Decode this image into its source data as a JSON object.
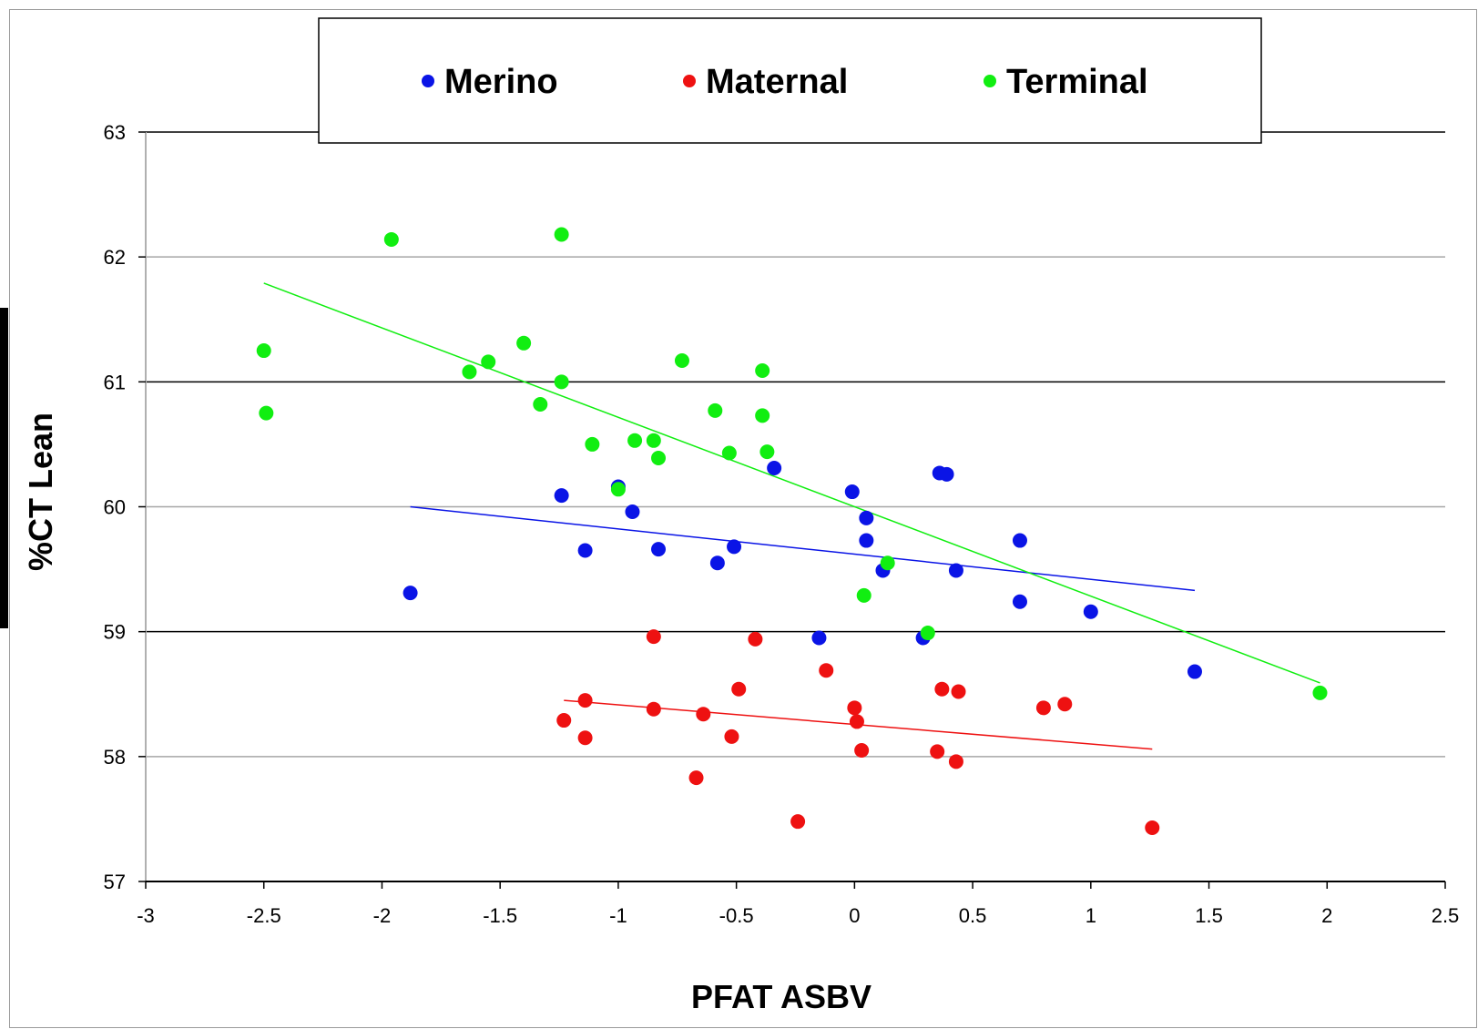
{
  "chart_data": {
    "type": "scatter",
    "title": "",
    "xlabel": "PFAT ASBV",
    "ylabel": "%CT Lean",
    "xlim": [
      -3,
      2.5
    ],
    "ylim": [
      57,
      63
    ],
    "x_ticks": [
      "-3",
      "-2.5",
      "-2",
      "-1.5",
      "-1",
      "-0.5",
      "0",
      "0.5",
      "1",
      "1.5",
      "2",
      "2.5"
    ],
    "y_ticks": [
      "57",
      "58",
      "59",
      "60",
      "61",
      "62",
      "63"
    ],
    "grid": "horizontal",
    "legend_position": "top",
    "series": [
      {
        "name": "Merino",
        "color": "#0a14e6",
        "trendline": [
          [
            -1.88,
            60.0
          ],
          [
            1.44,
            59.33
          ]
        ],
        "points": [
          [
            -1.88,
            59.31
          ],
          [
            -1.24,
            60.09
          ],
          [
            -1.14,
            59.65
          ],
          [
            -1.0,
            60.16
          ],
          [
            -0.94,
            59.96
          ],
          [
            -0.83,
            59.66
          ],
          [
            -0.58,
            59.55
          ],
          [
            -0.51,
            59.68
          ],
          [
            -0.34,
            60.31
          ],
          [
            -0.15,
            58.95
          ],
          [
            -0.01,
            60.12
          ],
          [
            0.05,
            59.91
          ],
          [
            0.05,
            59.73
          ],
          [
            0.12,
            59.49
          ],
          [
            0.29,
            58.95
          ],
          [
            0.36,
            60.27
          ],
          [
            0.39,
            60.26
          ],
          [
            0.43,
            59.49
          ],
          [
            0.7,
            59.73
          ],
          [
            0.7,
            59.24
          ],
          [
            1.0,
            59.16
          ],
          [
            1.44,
            58.68
          ]
        ]
      },
      {
        "name": "Maternal",
        "color": "#ee1111",
        "trendline": [
          [
            -1.23,
            58.45
          ],
          [
            1.26,
            58.06
          ]
        ],
        "points": [
          [
            -1.23,
            58.29
          ],
          [
            -1.14,
            58.45
          ],
          [
            -1.14,
            58.15
          ],
          [
            -0.85,
            58.96
          ],
          [
            -0.85,
            58.38
          ],
          [
            -0.67,
            57.83
          ],
          [
            -0.64,
            58.34
          ],
          [
            -0.52,
            58.16
          ],
          [
            -0.49,
            58.54
          ],
          [
            -0.42,
            58.94
          ],
          [
            -0.24,
            57.48
          ],
          [
            -0.12,
            58.69
          ],
          [
            0.0,
            58.39
          ],
          [
            0.01,
            58.28
          ],
          [
            0.03,
            58.05
          ],
          [
            0.35,
            58.04
          ],
          [
            0.37,
            58.54
          ],
          [
            0.43,
            57.96
          ],
          [
            0.44,
            58.52
          ],
          [
            0.8,
            58.39
          ],
          [
            0.89,
            58.42
          ],
          [
            1.26,
            57.43
          ]
        ]
      },
      {
        "name": "Terminal",
        "color": "#11ee11",
        "trendline": [
          [
            -2.5,
            61.79
          ],
          [
            1.97,
            58.59
          ]
        ],
        "points": [
          [
            -2.5,
            61.25
          ],
          [
            -2.49,
            60.75
          ],
          [
            -1.96,
            62.14
          ],
          [
            -1.63,
            61.08
          ],
          [
            -1.55,
            61.16
          ],
          [
            -1.4,
            61.31
          ],
          [
            -1.33,
            60.82
          ],
          [
            -1.24,
            62.18
          ],
          [
            -1.24,
            61.0
          ],
          [
            -1.11,
            60.5
          ],
          [
            -1.0,
            60.14
          ],
          [
            -0.93,
            60.53
          ],
          [
            -0.85,
            60.53
          ],
          [
            -0.83,
            60.39
          ],
          [
            -0.73,
            61.17
          ],
          [
            -0.59,
            60.77
          ],
          [
            -0.53,
            60.43
          ],
          [
            -0.39,
            61.09
          ],
          [
            -0.39,
            60.73
          ],
          [
            -0.37,
            60.44
          ],
          [
            0.04,
            59.29
          ],
          [
            0.14,
            59.55
          ],
          [
            0.31,
            58.99
          ],
          [
            1.97,
            58.51
          ]
        ]
      }
    ]
  }
}
